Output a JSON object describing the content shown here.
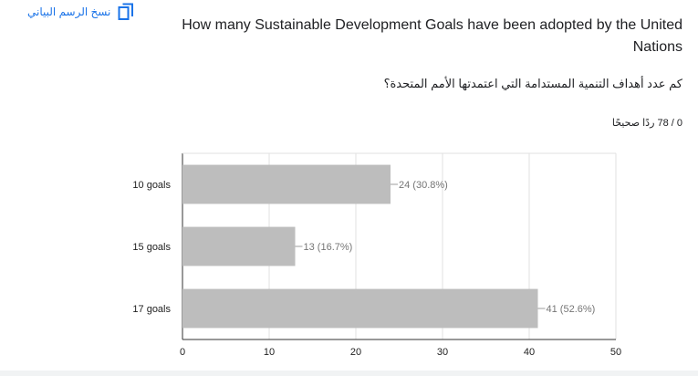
{
  "copy_chart": {
    "label": "نسخ الرسم البياني",
    "icon": "copy-icon",
    "color": "#1a73e8"
  },
  "question": {
    "english": "How many Sustainable Development Goals have been adopted by the United Nations",
    "arabic": "كم عدد أهداف التنمية المستدامة التي اعتمدتها الأمم المتحدة؟"
  },
  "score": {
    "text": "0 / 78 ردًا صحيحًا"
  },
  "chart_data": {
    "type": "bar",
    "orientation": "horizontal",
    "categories": [
      "10 goals",
      "15 goals",
      "17 goals"
    ],
    "values": [
      24,
      13,
      41
    ],
    "data_labels": [
      "24 (30.8%)",
      "13 (16.7%)",
      "41 (52.6%)"
    ],
    "x_ticks": [
      "0",
      "10",
      "20",
      "30",
      "40",
      "50"
    ],
    "xlim": [
      0,
      50
    ],
    "grid": true,
    "bar_color": "#bdbdbd"
  }
}
